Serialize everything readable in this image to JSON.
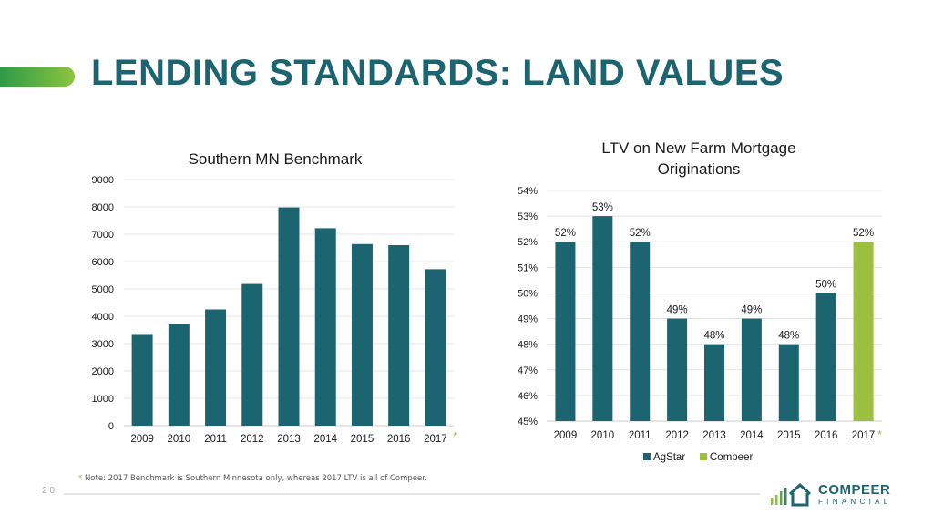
{
  "title": "LENDING STANDARDS: LAND VALUES",
  "footnote": {
    "star": "*",
    "text": "Note: 2017 Benchmark is Southern Minnesota only, whereas 2017 LTV is all of Compeer."
  },
  "page_number": "20",
  "logo": {
    "name": "COMPEER",
    "sub": "FINANCIAL"
  },
  "colors": {
    "title": "#1c6470",
    "agstar": "#1c6470",
    "compeer": "#9cbf3f",
    "accent": "#8cc43f"
  },
  "chart_data": [
    {
      "type": "bar",
      "title": "Southern MN Benchmark",
      "categories": [
        "2009",
        "2010",
        "2011",
        "2012",
        "2013",
        "2014",
        "2015",
        "2016",
        "2017"
      ],
      "series": [
        {
          "values": [
            3350,
            3700,
            4250,
            5180,
            7980,
            7220,
            6640,
            6600,
            5720
          ]
        }
      ],
      "ylim": [
        0,
        9000
      ],
      "yticks": [
        "0",
        "1000",
        "2000",
        "3000",
        "4000",
        "5000",
        "6000",
        "7000",
        "8000",
        "9000"
      ],
      "grid": true,
      "annotation": "*"
    },
    {
      "type": "bar",
      "title": "LTV on New Farm Mortgage Originations",
      "categories": [
        "2009",
        "2010",
        "2011",
        "2012",
        "2013",
        "2014",
        "2015",
        "2016",
        "2017"
      ],
      "series": [
        {
          "name": "AgStar",
          "values": [
            52,
            53,
            52,
            49,
            48,
            49,
            48,
            50,
            null
          ]
        },
        {
          "name": "Compeer",
          "values": [
            null,
            null,
            null,
            null,
            null,
            null,
            null,
            null,
            52
          ]
        }
      ],
      "data_labels": [
        "52%",
        "53%",
        "52%",
        "49%",
        "48%",
        "49%",
        "48%",
        "50%",
        "52%"
      ],
      "ylim": [
        45,
        54
      ],
      "yticks": [
        "45%",
        "46%",
        "47%",
        "48%",
        "49%",
        "50%",
        "51%",
        "52%",
        "53%",
        "54%"
      ],
      "grid": true,
      "legend": "bottom",
      "annotation": "*"
    }
  ]
}
